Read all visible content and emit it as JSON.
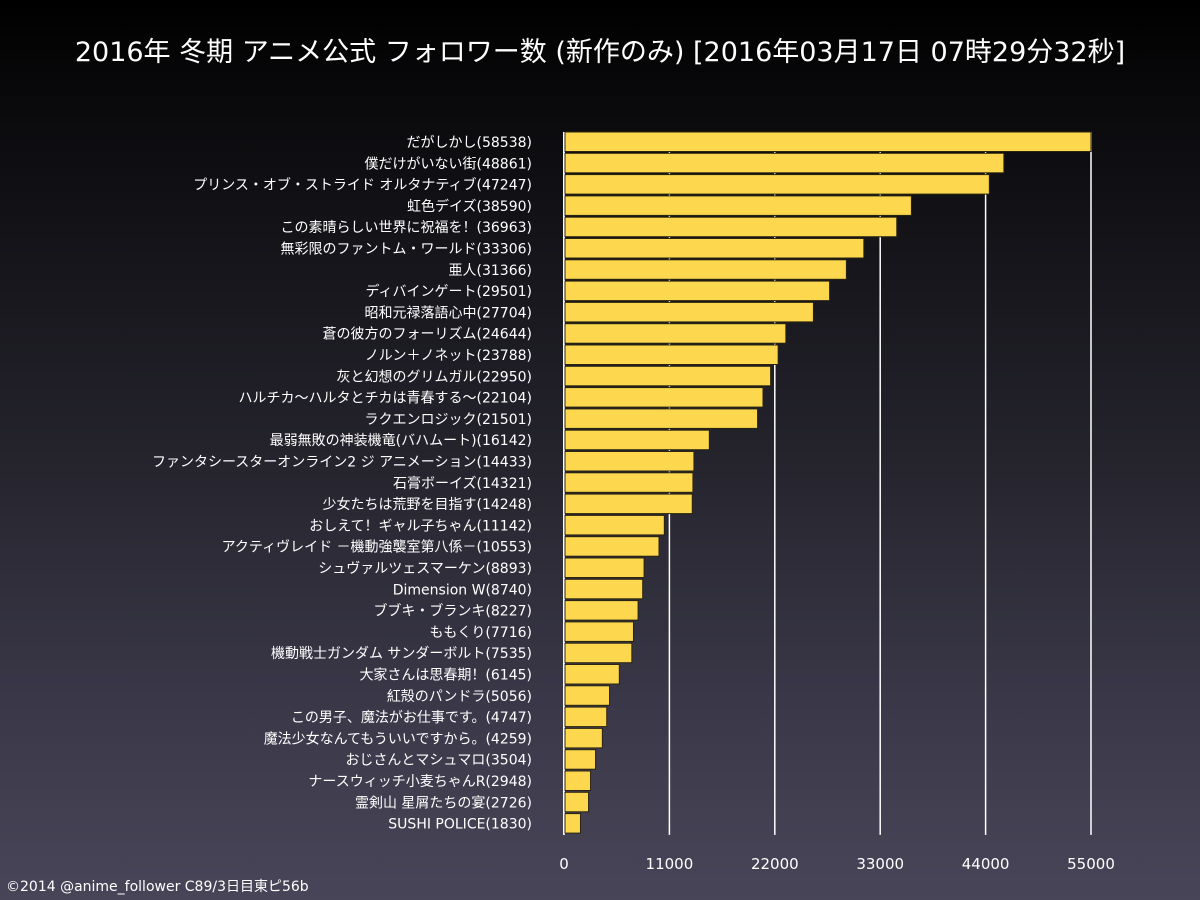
{
  "title": "2016年 冬期 アニメ公式 フォロワー数 (新作のみ) [2016年03月17日 07時29分32秒]",
  "footer": "©2014 @anime_follower C89/3日目東ピ56b",
  "colors": {
    "bar": "#fdd84e",
    "bar_border": "#2a2410",
    "grid": "#ffffff",
    "text": "#ffffff"
  },
  "chart_data": {
    "type": "bar",
    "orientation": "horizontal",
    "title": "2016年 冬期 アニメ公式 フォロワー数 (新作のみ) [2016年03月17日 07時29分32秒]",
    "xlabel": "",
    "ylabel": "",
    "x_ticks": [
      "0",
      "11000",
      "22000",
      "33000",
      "44000",
      "55000"
    ],
    "grid": true,
    "categories": [
      "だがしかし(58538)",
      "僕だけがいない街(48861)",
      "プリンス・オブ・ストライド オルタナティブ(47247)",
      "虹色デイズ(38590)",
      "この素晴らしい世界に祝福を！(36963)",
      "無彩限のファントム・ワールド(33306)",
      "亜人(31366)",
      "ディバインゲート(29501)",
      "昭和元禄落語心中(27704)",
      "蒼の彼方のフォーリズム(24644)",
      "ノルン＋ノネット(23788)",
      "灰と幻想のグリムガル(22950)",
      "ハルチカ～ハルタとチカは青春する～(22104)",
      "ラクエンロジック(21501)",
      "最弱無敗の神装機竜(バハムート)(16142)",
      "ファンタシースターオンライン2 ジ アニメーション(14433)",
      "石膏ボーイズ(14321)",
      "少女たちは荒野を目指す(14248)",
      "おしえて！ギャル子ちゃん(11142)",
      "アクティヴレイド －機動強襲室第八係－(10553)",
      "シュヴァルツェスマーケン(8893)",
      "Dimension W(8740)",
      "ブブキ・ブランキ(8227)",
      "ももくり(7716)",
      "機動戦士ガンダム サンダーボルト(7535)",
      "大家さんは思春期！(6145)",
      "紅殻のパンドラ(5056)",
      "この男子、魔法がお仕事です。(4747)",
      "魔法少女なんてもういいですから。(4259)",
      "おじさんとマシュマロ(3504)",
      "ナースウィッチ小麦ちゃんR(2948)",
      "霊剣山 星屑たちの宴(2726)",
      "SUSHI POLICE(1830)"
    ],
    "values": [
      58538,
      48861,
      47247,
      38590,
      36963,
      33306,
      31366,
      29501,
      27704,
      24644,
      23788,
      22950,
      22104,
      21501,
      16142,
      14433,
      14321,
      14248,
      11142,
      10553,
      8893,
      8740,
      8227,
      7716,
      7535,
      6145,
      5056,
      4747,
      4259,
      3504,
      2948,
      2726,
      1830
    ]
  }
}
